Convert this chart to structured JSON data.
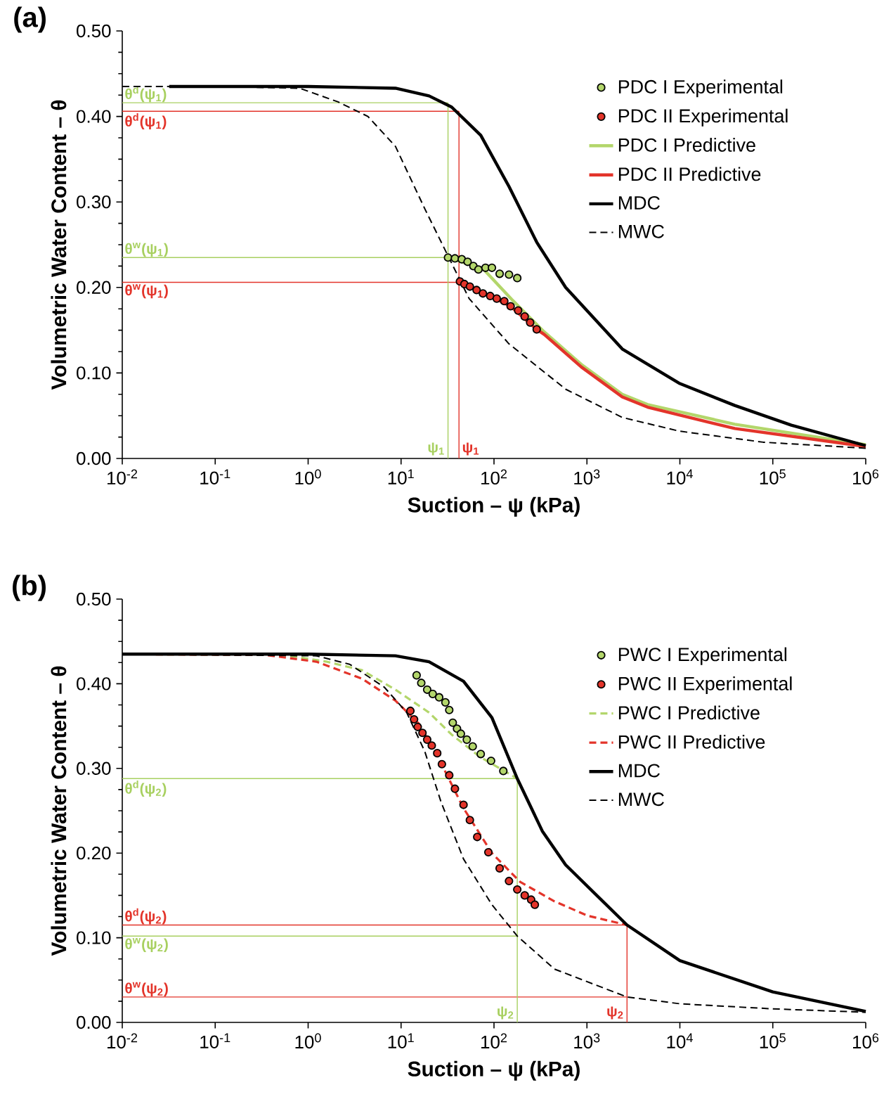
{
  "chart_data": [
    {
      "type": "line",
      "title": "(a)",
      "xlabel": "Suction – ψ (kPa)",
      "ylabel": "Volumetric Water Content – θ",
      "log": "x",
      "legend": "top right",
      "xlim": [
        0.01,
        1000000
      ],
      "ylim": [
        0,
        0.5
      ],
      "xticks": [
        {
          "value": 0.01,
          "label": "10$^{-2}$"
        },
        {
          "value": 0.1,
          "label": "10$^{-1}$"
        },
        {
          "value": 1,
          "label": "10$^{0}$"
        },
        {
          "value": 10,
          "label": "10$^{1}$"
        },
        {
          "value": 100,
          "label": "10$^{2}$"
        },
        {
          "value": 1000,
          "label": "10$^{3}$"
        },
        {
          "value": 10000,
          "label": "10$^{4}$"
        },
        {
          "value": 100000,
          "label": "10$^{5}$"
        },
        {
          "value": 1000000,
          "label": "10$^{6}$"
        }
      ],
      "yticks": [
        {
          "value": 0,
          "label": "0.00"
        },
        {
          "value": 0.1,
          "label": "0.10"
        },
        {
          "value": 0.2,
          "label": "0.20"
        },
        {
          "value": 0.3,
          "label": "0.30"
        },
        {
          "value": 0.4,
          "label": "0.40"
        },
        {
          "value": 0.5,
          "label": "0.50"
        }
      ],
      "series": [
        {
          "type": "scatter",
          "name": "PDC I Experimental",
          "color": "#b3d66b",
          "x": [
            32,
            38,
            45,
            52,
            60,
            68,
            81,
            95,
            115,
            145,
            178
          ],
          "values": [
            0.235,
            0.234,
            0.233,
            0.23,
            0.225,
            0.221,
            0.223,
            0.223,
            0.216,
            0.215,
            0.211
          ]
        },
        {
          "type": "scatter",
          "name": "PDC II Experimental",
          "color": "#e3342a",
          "x": [
            43,
            48,
            55,
            65,
            76,
            91,
            107,
            129,
            151,
            182,
            214,
            245,
            288
          ],
          "values": [
            0.207,
            0.204,
            0.201,
            0.197,
            0.193,
            0.19,
            0.187,
            0.184,
            0.178,
            0.173,
            0.166,
            0.159,
            0.151
          ]
        },
        {
          "name": "PDC I Predictive",
          "color": "#b3d66b",
          "line_style": "solid",
          "x": [
            32,
            76,
            155,
            347,
            870,
            2400,
            4500,
            39000,
            1000000
          ],
          "values": [
            0.235,
            0.222,
            0.186,
            0.148,
            0.11,
            0.075,
            0.063,
            0.04,
            0.016
          ]
        },
        {
          "name": "PDC II Predictive",
          "color": "#e3342a",
          "line_style": "solid",
          "x": [
            42,
            91,
            151,
            288,
            347,
            870,
            2400,
            4500,
            39000,
            1000000
          ],
          "values": [
            0.207,
            0.19,
            0.178,
            0.151,
            0.145,
            0.107,
            0.072,
            0.06,
            0.035,
            0.014
          ]
        },
        {
          "name": "MDC",
          "color": "#000000",
          "line_style": "solid",
          "x": [
            0.032,
            0.1,
            1,
            8.7,
            20,
            35,
            72,
            145,
            288,
            590,
            2400,
            9800,
            39000,
            158000,
            1000000
          ],
          "values": [
            0.435,
            0.435,
            0.435,
            0.433,
            0.424,
            0.411,
            0.378,
            0.318,
            0.253,
            0.2,
            0.128,
            0.088,
            0.062,
            0.039,
            0.015
          ]
        },
        {
          "name": "MWC",
          "color": "#000000",
          "line_style": "dashed",
          "x": [
            0.01,
            0.1,
            0.81,
            2.1,
            4.4,
            8.7,
            18,
            31,
            54,
            145,
            590,
            2400,
            9800,
            79000,
            1000000
          ],
          "values": [
            0.435,
            0.435,
            0.433,
            0.417,
            0.4,
            0.365,
            0.292,
            0.24,
            0.187,
            0.134,
            0.081,
            0.048,
            0.032,
            0.019,
            0.012
          ]
        }
      ],
      "ref_lines": [
        {
          "axis": "y",
          "value": 0.416,
          "label": "θ$^{d}$(ψ$_{1}$)",
          "color": "#a8d060"
        },
        {
          "axis": "y",
          "value": 0.406,
          "label": "θ$^{d}$(ψ$_{1}$)",
          "color": "#e3342a"
        },
        {
          "axis": "y",
          "value": 0.235,
          "label": "θ$^{w}$(ψ$_{1}$)",
          "color": "#a8d060"
        },
        {
          "axis": "y",
          "value": 0.206,
          "label": "θ$^{w}$(ψ$_{1}$)",
          "color": "#e3342a"
        },
        {
          "axis": "x",
          "value": 32,
          "label": "ψ$_{1}$",
          "color": "#a8d060"
        },
        {
          "axis": "x",
          "value": 42,
          "label": "ψ$_{1}$",
          "color": "#e3342a"
        }
      ]
    },
    {
      "type": "line",
      "title": "(b)",
      "xlabel": "Suction – ψ (kPa)",
      "ylabel": "Volumetric Water Content – θ",
      "log": "x",
      "legend": "top right",
      "xlim": [
        0.01,
        1000000
      ],
      "ylim": [
        0,
        0.5
      ],
      "xticks": [
        {
          "value": 0.01,
          "label": "10$^{-2}$"
        },
        {
          "value": 0.1,
          "label": "10$^{-1}$"
        },
        {
          "value": 1,
          "label": "10$^{0}$"
        },
        {
          "value": 10,
          "label": "10$^{1}$"
        },
        {
          "value": 100,
          "label": "10$^{2}$"
        },
        {
          "value": 1000,
          "label": "10$^{3}$"
        },
        {
          "value": 10000,
          "label": "10$^{4}$"
        },
        {
          "value": 100000,
          "label": "10$^{5}$"
        },
        {
          "value": 1000000,
          "label": "10$^{6}$"
        }
      ],
      "yticks": [
        {
          "value": 0,
          "label": "0.00"
        },
        {
          "value": 0.1,
          "label": "0.10"
        },
        {
          "value": 0.2,
          "label": "0.20"
        },
        {
          "value": 0.3,
          "label": "0.30"
        },
        {
          "value": 0.4,
          "label": "0.40"
        },
        {
          "value": 0.5,
          "label": "0.50"
        }
      ],
      "series": [
        {
          "type": "scatter",
          "name": "PWC I Experimental",
          "color": "#b3d66b",
          "x": [
            14.7,
            16.5,
            19.1,
            21.9,
            25.7,
            30,
            33,
            36,
            40,
            44,
            51,
            59,
            72,
            93,
            126
          ],
          "values": [
            0.41,
            0.401,
            0.393,
            0.388,
            0.384,
            0.378,
            0.369,
            0.354,
            0.347,
            0.341,
            0.334,
            0.326,
            0.317,
            0.309,
            0.297
          ]
        },
        {
          "type": "scatter",
          "name": "PWC II Experimental",
          "color": "#e3342a",
          "x": [
            12.6,
            13.8,
            15.1,
            17,
            19.1,
            21.4,
            24.5,
            27.5,
            33,
            38,
            47,
            55,
            66,
            87,
            115,
            145,
            178,
            214,
            251,
            275
          ],
          "values": [
            0.368,
            0.358,
            0.349,
            0.342,
            0.334,
            0.327,
            0.318,
            0.305,
            0.292,
            0.276,
            0.257,
            0.239,
            0.219,
            0.201,
            0.182,
            0.167,
            0.157,
            0.15,
            0.145,
            0.139
          ]
        },
        {
          "name": "PWC I Predictive",
          "color": "#b3d66b",
          "line_style": "dashed",
          "x": [
            0.01,
            0.54,
            1.6,
            3.8,
            8.7,
            20,
            35,
            72,
            178
          ],
          "values": [
            0.435,
            0.434,
            0.426,
            0.416,
            0.393,
            0.366,
            0.34,
            0.313,
            0.288
          ]
        },
        {
          "name": "PWC II Predictive",
          "color": "#e3342a",
          "line_style": "dashed",
          "x": [
            0.01,
            0.35,
            1.23,
            3.8,
            8.7,
            15.5,
            27,
            47,
            95,
            191,
            447,
            1020,
            2700
          ],
          "values": [
            0.435,
            0.434,
            0.426,
            0.406,
            0.38,
            0.353,
            0.306,
            0.253,
            0.2,
            0.166,
            0.143,
            0.126,
            0.115
          ]
        },
        {
          "name": "MDC",
          "color": "#000000",
          "line_style": "solid",
          "x": [
            0.01,
            1,
            8.7,
            20,
            47,
            95,
            178,
            331,
            590,
            2700,
            10000,
            100000,
            1000000
          ],
          "values": [
            0.435,
            0.435,
            0.433,
            0.426,
            0.403,
            0.36,
            0.288,
            0.226,
            0.186,
            0.115,
            0.073,
            0.036,
            0.013
          ]
        },
        {
          "name": "MWC",
          "color": "#000000",
          "line_style": "dashed",
          "x": [
            0.01,
            1.23,
            2.8,
            6.6,
            11.5,
            18,
            27,
            47,
            95,
            178,
            447,
            2700,
            10000,
            100000,
            1000000
          ],
          "values": [
            0.435,
            0.433,
            0.423,
            0.396,
            0.366,
            0.32,
            0.26,
            0.193,
            0.139,
            0.102,
            0.063,
            0.03,
            0.022,
            0.016,
            0.012
          ]
        }
      ],
      "ref_lines": [
        {
          "axis": "y",
          "value": 0.288,
          "label": "θ$^{d}$(ψ$_{2}$)",
          "color": "#a8d060"
        },
        {
          "axis": "y",
          "value": 0.115,
          "label": "θ$^{d}$(ψ$_{2}$)",
          "color": "#e3342a"
        },
        {
          "axis": "y",
          "value": 0.102,
          "label": "θ$^{w}$(ψ$_{2}$)",
          "color": "#a8d060"
        },
        {
          "axis": "y",
          "value": 0.03,
          "label": "θ$^{w}$(ψ$_{2}$)",
          "color": "#e3342a"
        },
        {
          "axis": "x",
          "value": 178,
          "label": "ψ$_{2}$",
          "color": "#a8d060"
        },
        {
          "axis": "x",
          "value": 2700,
          "label": "ψ$_{2}$",
          "color": "#e3342a"
        }
      ]
    }
  ]
}
